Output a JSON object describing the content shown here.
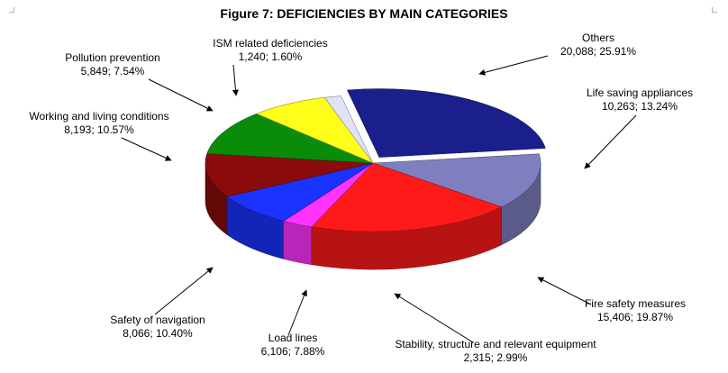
{
  "chart_data": {
    "type": "pie",
    "title": "Figure 7: DEFICIENCIES BY MAIN CATEGORIES",
    "slices": [
      {
        "name": "Others",
        "value": 20088,
        "value_text": "20,088",
        "percent_text": "25.91%",
        "color": "#1a1f8c"
      },
      {
        "name": "Life saving appliances",
        "value": 10263,
        "value_text": "10,263",
        "percent_text": "13.24%",
        "color": "#7f7fbf"
      },
      {
        "name": "Fire safety measures",
        "value": 15406,
        "value_text": "15,406",
        "percent_text": "19.87%",
        "color": "#ff1a1a"
      },
      {
        "name": "Stability, structure and relevant equipment",
        "value": 2315,
        "value_text": "2,315",
        "percent_text": "2.99%",
        "color": "#ff33ff"
      },
      {
        "name": "Load lines",
        "value": 6106,
        "value_text": "6,106",
        "percent_text": "7.88%",
        "color": "#1a33ff"
      },
      {
        "name": "Safety of navigation",
        "value": 8066,
        "value_text": "8,066",
        "percent_text": "10.40%",
        "color": "#8b0a0a"
      },
      {
        "name": "Working and living conditions",
        "value": 8193,
        "value_text": "8,193",
        "percent_text": "10.57%",
        "color": "#0a8c0a"
      },
      {
        "name": "Pollution prevention",
        "value": 5849,
        "value_text": "5,849",
        "percent_text": "7.54%",
        "color": "#ffff1a"
      },
      {
        "name": "ISM related deficiencies",
        "value": 1240,
        "value_text": "1,240",
        "percent_text": "1.60%",
        "color": "#dfe3f5"
      }
    ]
  }
}
